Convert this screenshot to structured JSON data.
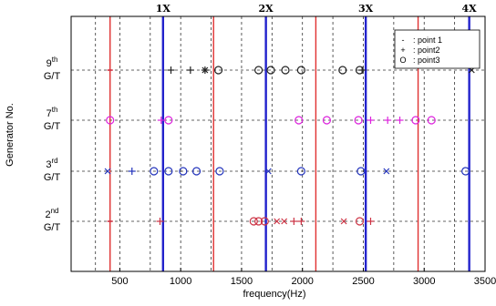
{
  "chart_data": {
    "type": "scatter",
    "xlabel": "frequency(Hz)",
    "ylabel": "Generator No.",
    "xlim": [
      100,
      3500
    ],
    "xticks": [
      500,
      1000,
      1500,
      2000,
      2500,
      3000,
      3500
    ],
    "x_grid": "dashed",
    "legend_position": "top-right",
    "categories": [
      {
        "main": "2",
        "sup": "nd",
        "sub": "G/T"
      },
      {
        "main": "3",
        "sup": "rd",
        "sub": "G/T"
      },
      {
        "main": "7",
        "sup": "th",
        "sub": "G/T"
      },
      {
        "main": "9",
        "sup": "th",
        "sub": "G/T"
      }
    ],
    "legend": [
      {
        "glyph": "-",
        "label": ": point 1"
      },
      {
        "glyph": "+",
        "label": ": point2"
      },
      {
        "glyph": "O",
        "label": ": point3"
      }
    ],
    "harmonic_lines": [
      {
        "label": "1X",
        "x": 855,
        "color": "#2222cc"
      },
      {
        "label": "2X",
        "x": 1700,
        "color": "#2222cc"
      },
      {
        "label": "3X",
        "x": 2520,
        "color": "#2222cc"
      },
      {
        "label": "4X",
        "x": 3370,
        "color": "#2222cc"
      }
    ],
    "red_lines": [
      420,
      1270,
      2110,
      2950
    ],
    "series": [
      {
        "category": "9",
        "points": [
          {
            "x": 420,
            "marker": "-",
            "color": "#cc3344"
          },
          {
            "x": 920,
            "marker": "+",
            "color": "#222222"
          },
          {
            "x": 1080,
            "marker": "+",
            "color": "#222222"
          },
          {
            "x": 1200,
            "marker": "*",
            "color": "#222222"
          },
          {
            "x": 1310,
            "marker": "o",
            "color": "#222222"
          },
          {
            "x": 1640,
            "marker": "o",
            "color": "#222222"
          },
          {
            "x": 1740,
            "marker": "o",
            "color": "#222222"
          },
          {
            "x": 1860,
            "marker": "o",
            "color": "#222222"
          },
          {
            "x": 1990,
            "marker": "o",
            "color": "#222222"
          },
          {
            "x": 2330,
            "marker": "o",
            "color": "#222222"
          },
          {
            "x": 2470,
            "marker": "o",
            "color": "#222222"
          },
          {
            "x": 2490,
            "marker": "+",
            "color": "#222222"
          },
          {
            "x": 3390,
            "marker": "x",
            "color": "#222222"
          }
        ]
      },
      {
        "category": "7",
        "points": [
          {
            "x": 420,
            "marker": "o",
            "color": "#dd22dd"
          },
          {
            "x": 840,
            "marker": "+",
            "color": "#dd22dd"
          },
          {
            "x": 900,
            "marker": "o",
            "color": "#dd22dd"
          },
          {
            "x": 1970,
            "marker": "o",
            "color": "#dd22dd"
          },
          {
            "x": 2200,
            "marker": "o",
            "color": "#dd22dd"
          },
          {
            "x": 2460,
            "marker": "o",
            "color": "#dd22dd"
          },
          {
            "x": 2560,
            "marker": "+",
            "color": "#dd22dd"
          },
          {
            "x": 2700,
            "marker": "+",
            "color": "#dd22dd"
          },
          {
            "x": 2800,
            "marker": "+",
            "color": "#dd22dd"
          },
          {
            "x": 2930,
            "marker": "o",
            "color": "#dd22dd"
          },
          {
            "x": 3060,
            "marker": "o",
            "color": "#dd22dd"
          }
        ]
      },
      {
        "category": "3",
        "points": [
          {
            "x": 400,
            "marker": "x",
            "color": "#2233bb"
          },
          {
            "x": 600,
            "marker": "+",
            "color": "#2233bb"
          },
          {
            "x": 780,
            "marker": "o",
            "color": "#2233bb"
          },
          {
            "x": 900,
            "marker": "o",
            "color": "#2233bb"
          },
          {
            "x": 1020,
            "marker": "o",
            "color": "#2233bb"
          },
          {
            "x": 1130,
            "marker": "o",
            "color": "#2233bb"
          },
          {
            "x": 1320,
            "marker": "o",
            "color": "#2233bb"
          },
          {
            "x": 1720,
            "marker": "x",
            "color": "#2233bb"
          },
          {
            "x": 1990,
            "marker": "o",
            "color": "#2233bb"
          },
          {
            "x": 2480,
            "marker": "o",
            "color": "#2233bb"
          },
          {
            "x": 2690,
            "marker": "x",
            "color": "#2233bb"
          },
          {
            "x": 3340,
            "marker": "o",
            "color": "#2233bb"
          }
        ]
      },
      {
        "category": "2",
        "points": [
          {
            "x": 420,
            "marker": "-",
            "color": "#cc3344"
          },
          {
            "x": 830,
            "marker": "+",
            "color": "#cc3344"
          },
          {
            "x": 1600,
            "marker": "o",
            "color": "#cc3344"
          },
          {
            "x": 1640,
            "marker": "o",
            "color": "#cc3344"
          },
          {
            "x": 1690,
            "marker": "o",
            "color": "#cc3344"
          },
          {
            "x": 1790,
            "marker": "x",
            "color": "#cc3344"
          },
          {
            "x": 1850,
            "marker": "x",
            "color": "#cc3344"
          },
          {
            "x": 1930,
            "marker": "+",
            "color": "#cc3344"
          },
          {
            "x": 1990,
            "marker": "+",
            "color": "#cc3344"
          },
          {
            "x": 2340,
            "marker": "x",
            "color": "#cc3344"
          },
          {
            "x": 2470,
            "marker": "o",
            "color": "#cc3344"
          },
          {
            "x": 2560,
            "marker": "+",
            "color": "#cc3344"
          }
        ]
      }
    ]
  }
}
